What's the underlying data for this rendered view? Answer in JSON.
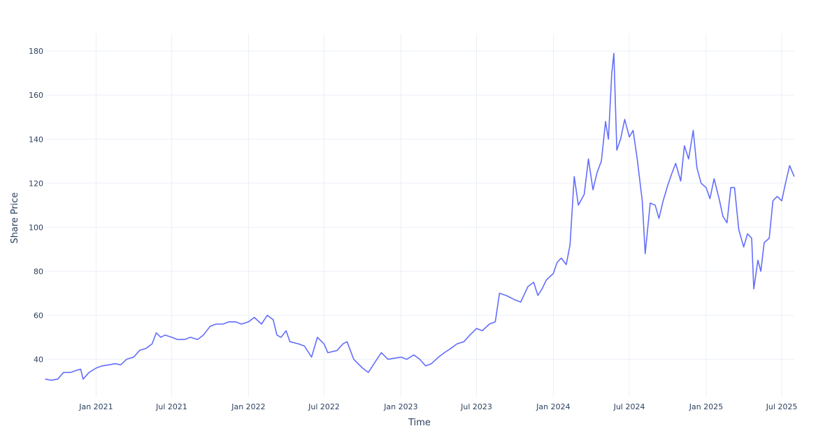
{
  "chart_data": {
    "type": "line",
    "title": "",
    "xlabel": "Time",
    "ylabel": "Share Price",
    "x_range": [
      "2020-08-31",
      "2025-07-31"
    ],
    "ylim": [
      23,
      188
    ],
    "grid": true,
    "legend": "none",
    "x_ticks": [
      {
        "date": "2021-01-01",
        "label": "Jan 2021"
      },
      {
        "date": "2021-07-01",
        "label": "Jul 2021"
      },
      {
        "date": "2022-01-01",
        "label": "Jan 2022"
      },
      {
        "date": "2022-07-01",
        "label": "Jul 2022"
      },
      {
        "date": "2023-01-01",
        "label": "Jan 2023"
      },
      {
        "date": "2023-07-01",
        "label": "Jul 2023"
      },
      {
        "date": "2024-01-01",
        "label": "Jan 2024"
      },
      {
        "date": "2024-07-01",
        "label": "Jul 2024"
      },
      {
        "date": "2025-01-01",
        "label": "Jan 2025"
      },
      {
        "date": "2025-07-01",
        "label": "Jul 2025"
      }
    ],
    "y_ticks": [
      40,
      60,
      80,
      100,
      120,
      140,
      160,
      180
    ],
    "series": [
      {
        "color": "#636efa",
        "points": [
          [
            "2020-09-01",
            31
          ],
          [
            "2020-09-15",
            30.5
          ],
          [
            "2020-10-01",
            31
          ],
          [
            "2020-10-15",
            34
          ],
          [
            "2020-11-01",
            34
          ],
          [
            "2020-11-15",
            35
          ],
          [
            "2020-11-25",
            35.5
          ],
          [
            "2020-12-01",
            31
          ],
          [
            "2020-12-15",
            34
          ],
          [
            "2021-01-01",
            36
          ],
          [
            "2021-01-15",
            37
          ],
          [
            "2021-02-01",
            37.5
          ],
          [
            "2021-02-15",
            38
          ],
          [
            "2021-03-01",
            37.5
          ],
          [
            "2021-03-15",
            40
          ],
          [
            "2021-04-01",
            41
          ],
          [
            "2021-04-15",
            44
          ],
          [
            "2021-05-01",
            45
          ],
          [
            "2021-05-15",
            47
          ],
          [
            "2021-05-25",
            52
          ],
          [
            "2021-06-05",
            50
          ],
          [
            "2021-06-15",
            51
          ],
          [
            "2021-07-01",
            50
          ],
          [
            "2021-07-15",
            49
          ],
          [
            "2021-08-01",
            49
          ],
          [
            "2021-08-15",
            50
          ],
          [
            "2021-09-01",
            49
          ],
          [
            "2021-09-15",
            51
          ],
          [
            "2021-10-01",
            55
          ],
          [
            "2021-10-15",
            56
          ],
          [
            "2021-11-01",
            56
          ],
          [
            "2021-11-15",
            57
          ],
          [
            "2021-12-01",
            57
          ],
          [
            "2021-12-15",
            56
          ],
          [
            "2022-01-01",
            57
          ],
          [
            "2022-01-15",
            59
          ],
          [
            "2022-02-01",
            56
          ],
          [
            "2022-02-15",
            60
          ],
          [
            "2022-03-01",
            58
          ],
          [
            "2022-03-10",
            51
          ],
          [
            "2022-03-20",
            50
          ],
          [
            "2022-04-01",
            53
          ],
          [
            "2022-04-10",
            48
          ],
          [
            "2022-05-01",
            47
          ],
          [
            "2022-05-15",
            46
          ],
          [
            "2022-06-01",
            41
          ],
          [
            "2022-06-15",
            50
          ],
          [
            "2022-07-01",
            47
          ],
          [
            "2022-07-10",
            43
          ],
          [
            "2022-08-01",
            44
          ],
          [
            "2022-08-15",
            47
          ],
          [
            "2022-08-25",
            48
          ],
          [
            "2022-09-10",
            40
          ],
          [
            "2022-10-01",
            36
          ],
          [
            "2022-10-15",
            34
          ],
          [
            "2022-11-01",
            39
          ],
          [
            "2022-11-15",
            43
          ],
          [
            "2022-12-01",
            40
          ],
          [
            "2023-01-01",
            41
          ],
          [
            "2023-01-15",
            40
          ],
          [
            "2023-02-01",
            42
          ],
          [
            "2023-02-15",
            40
          ],
          [
            "2023-03-01",
            37
          ],
          [
            "2023-03-15",
            38
          ],
          [
            "2023-04-01",
            41
          ],
          [
            "2023-04-15",
            43
          ],
          [
            "2023-05-01",
            45
          ],
          [
            "2023-05-15",
            47
          ],
          [
            "2023-06-01",
            48
          ],
          [
            "2023-06-15",
            51
          ],
          [
            "2023-07-01",
            54
          ],
          [
            "2023-07-15",
            53
          ],
          [
            "2023-08-01",
            56
          ],
          [
            "2023-08-15",
            57
          ],
          [
            "2023-08-25",
            70
          ],
          [
            "2023-09-10",
            69
          ],
          [
            "2023-10-01",
            67
          ],
          [
            "2023-10-15",
            66
          ],
          [
            "2023-11-01",
            73
          ],
          [
            "2023-11-15",
            75
          ],
          [
            "2023-11-25",
            69
          ],
          [
            "2023-12-05",
            72
          ],
          [
            "2023-12-15",
            76
          ],
          [
            "2024-01-01",
            79
          ],
          [
            "2024-01-10",
            84
          ],
          [
            "2024-01-20",
            86
          ],
          [
            "2024-02-01",
            83
          ],
          [
            "2024-02-10",
            92
          ],
          [
            "2024-02-20",
            123
          ],
          [
            "2024-03-01",
            110
          ],
          [
            "2024-03-15",
            115
          ],
          [
            "2024-03-25",
            131
          ],
          [
            "2024-04-05",
            117
          ],
          [
            "2024-04-15",
            125
          ],
          [
            "2024-04-25",
            130
          ],
          [
            "2024-05-05",
            148
          ],
          [
            "2024-05-12",
            140
          ],
          [
            "2024-05-20",
            170
          ],
          [
            "2024-05-25",
            179
          ],
          [
            "2024-06-01",
            135
          ],
          [
            "2024-06-10",
            140
          ],
          [
            "2024-06-20",
            149
          ],
          [
            "2024-07-01",
            141
          ],
          [
            "2024-07-10",
            144
          ],
          [
            "2024-07-20",
            131
          ],
          [
            "2024-08-01",
            112
          ],
          [
            "2024-08-08",
            88
          ],
          [
            "2024-08-20",
            111
          ],
          [
            "2024-09-01",
            110
          ],
          [
            "2024-09-10",
            104
          ],
          [
            "2024-09-20",
            112
          ],
          [
            "2024-10-01",
            119
          ],
          [
            "2024-10-10",
            124
          ],
          [
            "2024-10-20",
            129
          ],
          [
            "2024-11-01",
            121
          ],
          [
            "2024-11-10",
            137
          ],
          [
            "2024-11-20",
            131
          ],
          [
            "2024-12-01",
            144
          ],
          [
            "2024-12-10",
            127
          ],
          [
            "2024-12-20",
            120
          ],
          [
            "2025-01-01",
            118
          ],
          [
            "2025-01-10",
            113
          ],
          [
            "2025-01-20",
            122
          ],
          [
            "2025-02-01",
            113
          ],
          [
            "2025-02-10",
            105
          ],
          [
            "2025-02-20",
            102
          ],
          [
            "2025-03-01",
            118
          ],
          [
            "2025-03-10",
            118
          ],
          [
            "2025-03-20",
            99
          ],
          [
            "2025-04-01",
            91
          ],
          [
            "2025-04-10",
            97
          ],
          [
            "2025-04-20",
            95
          ],
          [
            "2025-04-25",
            72
          ],
          [
            "2025-05-05",
            85
          ],
          [
            "2025-05-12",
            80
          ],
          [
            "2025-05-20",
            93
          ],
          [
            "2025-06-01",
            95
          ],
          [
            "2025-06-10",
            112
          ],
          [
            "2025-06-20",
            114
          ],
          [
            "2025-07-01",
            112
          ],
          [
            "2025-07-10",
            120
          ],
          [
            "2025-07-20",
            128
          ],
          [
            "2025-07-31",
            123
          ]
        ]
      }
    ]
  }
}
